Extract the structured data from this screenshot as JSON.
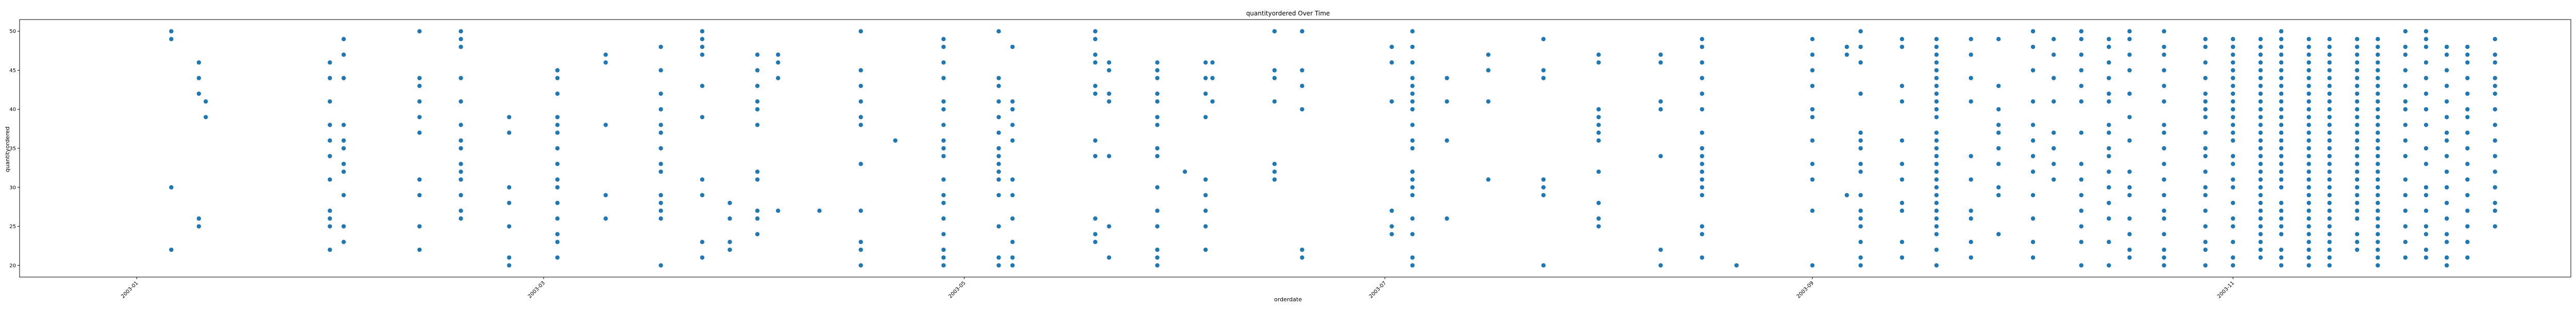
{
  "chart_data": {
    "type": "scatter",
    "title": "quantityordered Over Time",
    "xlabel": "orderdate",
    "ylabel": "quantityordered",
    "x_ticks": [
      "2003-01",
      "2003-03",
      "2003-05",
      "2003-07",
      "2003-09",
      "2003-11"
    ],
    "y_ticks": [
      20,
      25,
      30,
      35,
      40,
      45,
      50
    ],
    "xlim": [
      "2002-12-15",
      "2003-12-20"
    ],
    "ylim": [
      18.5,
      51.5
    ],
    "grid": false,
    "marker_color": "#1f77b4",
    "points": [
      {
        "x": "2003-01-06",
        "y": [
          22,
          30,
          49,
          50
        ]
      },
      {
        "x": "2003-01-10",
        "y": [
          25,
          26,
          42,
          44,
          46
        ]
      },
      {
        "x": "2003-01-11",
        "y": [
          39,
          41
        ]
      },
      {
        "x": "2003-01-29",
        "y": [
          22,
          25,
          26,
          27,
          31,
          34,
          36,
          38,
          41,
          44,
          46
        ]
      },
      {
        "x": "2003-01-31",
        "y": [
          23,
          25,
          29,
          32,
          33,
          35,
          36,
          38,
          44,
          47,
          49
        ]
      },
      {
        "x": "2003-02-11",
        "y": [
          22,
          25,
          29,
          31,
          37,
          39,
          41,
          43,
          44,
          50
        ]
      },
      {
        "x": "2003-02-17",
        "y": [
          26,
          27,
          29,
          31,
          32,
          33,
          35,
          36,
          38,
          41,
          44,
          48,
          49,
          50
        ]
      },
      {
        "x": "2003-02-24",
        "y": [
          20,
          21,
          25,
          28,
          30,
          37,
          39
        ]
      },
      {
        "x": "2003-03-03",
        "y": [
          21,
          23,
          24,
          26,
          28,
          30,
          31,
          33,
          35,
          37,
          38,
          39,
          42,
          44,
          45
        ]
      },
      {
        "x": "2003-03-10",
        "y": [
          26,
          29,
          38,
          46,
          47
        ]
      },
      {
        "x": "2003-03-18",
        "y": [
          20,
          26,
          27,
          28,
          29,
          32,
          33,
          35,
          37,
          38,
          40,
          42,
          45,
          48
        ]
      },
      {
        "x": "2003-03-24",
        "y": [
          21,
          23,
          29,
          31,
          39,
          43,
          47,
          48,
          49,
          50
        ]
      },
      {
        "x": "2003-03-28",
        "y": [
          22,
          23,
          26,
          28
        ]
      },
      {
        "x": "2003-04-01",
        "y": [
          24,
          26,
          27,
          31,
          32,
          38,
          40,
          41,
          43,
          45,
          47
        ]
      },
      {
        "x": "2003-04-04",
        "y": [
          27,
          44,
          46,
          47
        ]
      },
      {
        "x": "2003-04-10",
        "y": [
          27
        ]
      },
      {
        "x": "2003-04-16",
        "y": [
          20,
          22,
          23,
          27,
          33,
          38,
          39,
          41,
          43,
          45,
          50
        ]
      },
      {
        "x": "2003-04-21",
        "y": [
          36
        ]
      },
      {
        "x": "2003-04-28",
        "y": [
          20,
          21,
          22,
          24,
          26,
          28,
          29,
          31,
          34,
          35,
          36,
          38,
          40,
          41,
          44,
          46,
          48,
          49
        ]
      },
      {
        "x": "2003-05-06",
        "y": [
          20,
          21,
          25,
          29,
          31,
          32,
          33,
          34,
          35,
          37,
          39,
          41,
          43,
          44,
          50
        ]
      },
      {
        "x": "2003-05-08",
        "y": [
          20,
          21,
          23,
          26,
          29,
          31,
          36,
          38,
          40,
          41,
          48
        ]
      },
      {
        "x": "2003-05-20",
        "y": [
          23,
          24,
          26,
          34,
          36,
          42,
          43,
          46,
          47,
          49,
          50
        ]
      },
      {
        "x": "2003-05-22",
        "y": [
          21,
          25,
          34,
          41,
          42,
          45,
          46
        ]
      },
      {
        "x": "2003-05-29",
        "y": [
          20,
          21,
          22,
          25,
          27,
          30,
          34,
          35,
          38,
          39,
          41,
          42,
          44,
          45,
          46
        ]
      },
      {
        "x": "2003-06-02",
        "y": [
          32
        ]
      },
      {
        "x": "2003-06-05",
        "y": [
          22,
          25,
          27,
          29,
          31,
          39,
          42,
          44,
          46
        ]
      },
      {
        "x": "2003-06-06",
        "y": [
          41,
          44,
          46
        ]
      },
      {
        "x": "2003-06-15",
        "y": [
          31,
          32,
          33,
          41,
          44,
          45,
          50
        ]
      },
      {
        "x": "2003-06-19",
        "y": [
          21,
          22,
          40,
          43,
          45,
          50
        ]
      },
      {
        "x": "2003-07-02",
        "y": [
          24,
          25,
          27,
          41,
          46,
          48
        ]
      },
      {
        "x": "2003-07-05",
        "y": [
          20,
          21,
          24,
          26,
          29,
          30,
          31,
          32,
          35,
          36,
          38,
          40,
          41,
          42,
          43,
          44,
          46,
          48,
          50
        ]
      },
      {
        "x": "2003-07-10",
        "y": [
          26,
          36,
          41,
          44
        ]
      },
      {
        "x": "2003-07-16",
        "y": [
          31,
          41,
          45,
          47
        ]
      },
      {
        "x": "2003-07-24",
        "y": [
          20,
          29,
          30,
          31,
          44,
          45,
          49
        ]
      },
      {
        "x": "2003-08-01",
        "y": [
          25,
          26,
          28,
          32,
          36,
          37,
          38,
          39,
          40,
          46,
          47
        ]
      },
      {
        "x": "2003-08-10",
        "y": [
          20,
          22,
          34,
          40,
          41,
          46,
          47
        ]
      },
      {
        "x": "2003-08-16",
        "y": [
          21,
          24,
          25,
          29,
          30,
          31,
          32,
          33,
          34,
          35,
          37,
          40,
          42,
          44,
          46,
          48,
          49
        ]
      },
      {
        "x": "2003-08-21",
        "y": [
          20
        ]
      },
      {
        "x": "2003-09-01",
        "y": [
          20,
          27,
          31,
          33,
          36,
          39,
          40,
          43,
          45,
          47,
          49
        ]
      },
      {
        "x": "2003-09-06",
        "y": [
          29,
          47,
          48
        ]
      },
      {
        "x": "2003-09-08",
        "y": [
          20,
          21,
          23,
          25,
          26,
          27,
          29,
          32,
          33,
          35,
          36,
          37,
          42,
          46,
          48,
          50
        ]
      },
      {
        "x": "2003-09-14",
        "y": [
          21,
          23,
          27,
          28,
          31,
          33,
          36,
          41,
          43,
          48,
          49
        ]
      },
      {
        "x": "2003-09-19",
        "y": [
          20,
          22,
          24,
          25,
          26,
          27,
          28,
          29,
          30,
          31,
          32,
          33,
          34,
          35,
          36,
          37,
          39,
          40,
          41,
          42,
          43,
          44,
          45,
          46,
          47,
          48,
          49
        ]
      },
      {
        "x": "2003-09-24",
        "y": [
          21,
          23,
          26,
          27,
          31,
          34,
          41,
          44,
          47,
          49
        ]
      },
      {
        "x": "2003-09-28",
        "y": [
          24,
          29,
          30,
          33,
          35,
          37,
          38,
          40,
          43,
          49
        ]
      },
      {
        "x": "2003-10-03",
        "y": [
          21,
          23,
          26,
          29,
          32,
          34,
          36,
          38,
          41,
          45,
          48,
          50
        ]
      },
      {
        "x": "2003-10-06",
        "y": [
          31,
          33,
          35,
          37,
          41,
          44,
          47,
          49
        ]
      },
      {
        "x": "2003-10-10",
        "y": [
          20,
          23,
          25,
          27,
          29,
          31,
          33,
          37,
          41,
          43,
          45,
          47,
          49,
          50
        ]
      },
      {
        "x": "2003-10-14",
        "y": [
          20,
          23,
          26,
          28,
          30,
          32,
          34,
          35,
          37,
          38,
          41,
          42,
          44,
          46,
          48,
          49
        ]
      },
      {
        "x": "2003-10-17",
        "y": [
          21,
          22,
          24,
          26,
          29,
          30,
          32,
          36,
          39,
          42,
          45,
          47,
          49,
          50
        ]
      },
      {
        "x": "2003-10-22",
        "y": [
          20,
          21,
          22,
          24,
          26,
          27,
          29,
          31,
          33,
          35,
          37,
          38,
          41,
          43,
          45,
          47,
          48,
          50
        ]
      },
      {
        "x": "2003-10-28",
        "y": [
          20,
          22,
          23,
          25,
          27,
          29,
          30,
          32,
          34,
          35,
          37,
          39,
          40,
          41,
          42,
          44,
          46,
          48,
          49
        ]
      },
      {
        "x": "2003-11-01",
        "y": [
          20,
          21,
          23,
          25,
          26,
          28,
          30,
          31,
          33,
          34,
          36,
          37,
          38,
          39,
          40,
          41,
          42,
          43,
          44,
          45,
          46,
          47,
          48,
          49
        ]
      },
      {
        "x": "2003-11-05",
        "y": [
          21,
          22,
          23,
          24,
          25,
          26,
          27,
          28,
          29,
          30,
          31,
          32,
          33,
          34,
          35,
          36,
          37,
          38,
          39,
          40,
          41,
          42,
          43,
          44,
          45,
          46,
          47,
          48,
          49
        ]
      },
      {
        "x": "2003-11-08",
        "y": [
          20,
          21,
          22,
          24,
          25,
          26,
          27,
          28,
          30,
          31,
          32,
          33,
          34,
          35,
          36,
          37,
          38,
          39,
          40,
          41,
          42,
          43,
          44,
          45,
          46,
          47,
          48,
          49,
          50
        ]
      },
      {
        "x": "2003-11-12",
        "y": [
          20,
          21,
          22,
          23,
          24,
          25,
          26,
          27,
          28,
          29,
          30,
          31,
          32,
          33,
          34,
          35,
          36,
          37,
          38,
          39,
          40,
          41,
          42,
          43,
          44,
          45,
          46,
          47,
          48,
          49
        ]
      },
      {
        "x": "2003-11-15",
        "y": [
          20,
          21,
          22,
          23,
          24,
          25,
          26,
          27,
          28,
          29,
          30,
          31,
          32,
          33,
          34,
          35,
          36,
          37,
          38,
          39,
          40,
          41,
          42,
          43,
          44,
          45,
          46,
          47,
          48,
          49
        ]
      },
      {
        "x": "2003-11-19",
        "y": [
          22,
          23,
          24,
          26,
          27,
          28,
          29,
          30,
          31,
          32,
          33,
          34,
          35,
          36,
          37,
          38,
          39,
          40,
          41,
          42,
          43,
          44,
          45,
          46,
          47,
          48,
          49
        ]
      },
      {
        "x": "2003-11-22",
        "y": [
          20,
          21,
          22,
          23,
          24,
          25,
          26,
          27,
          28,
          29,
          30,
          31,
          32,
          33,
          34,
          35,
          36,
          37,
          38,
          39,
          40,
          41,
          42,
          43,
          44,
          45,
          46,
          47,
          48,
          49
        ]
      },
      {
        "x": "2003-11-26",
        "y": [
          21,
          23,
          25,
          27,
          29,
          31,
          34,
          36,
          38,
          40,
          41,
          43,
          45,
          47,
          48,
          50
        ]
      },
      {
        "x": "2003-11-29",
        "y": [
          21,
          22,
          24,
          25,
          27,
          29,
          30,
          33,
          35,
          38,
          40,
          42,
          44,
          46,
          48,
          49,
          50
        ]
      },
      {
        "x": "2003-12-02",
        "y": [
          20,
          21,
          23,
          24,
          26,
          28,
          30,
          32,
          34,
          36,
          37,
          39,
          41,
          43,
          45,
          47,
          48
        ]
      },
      {
        "x": "2003-12-05",
        "y": [
          21,
          23,
          25,
          27,
          29,
          31,
          33,
          35,
          37,
          39,
          40,
          42,
          44,
          46,
          47,
          48
        ]
      },
      {
        "x": "2003-12-09",
        "y": [
          25,
          27,
          28,
          30,
          32,
          34,
          36,
          38,
          40,
          42,
          43,
          44,
          46,
          47,
          49
        ]
      }
    ]
  }
}
